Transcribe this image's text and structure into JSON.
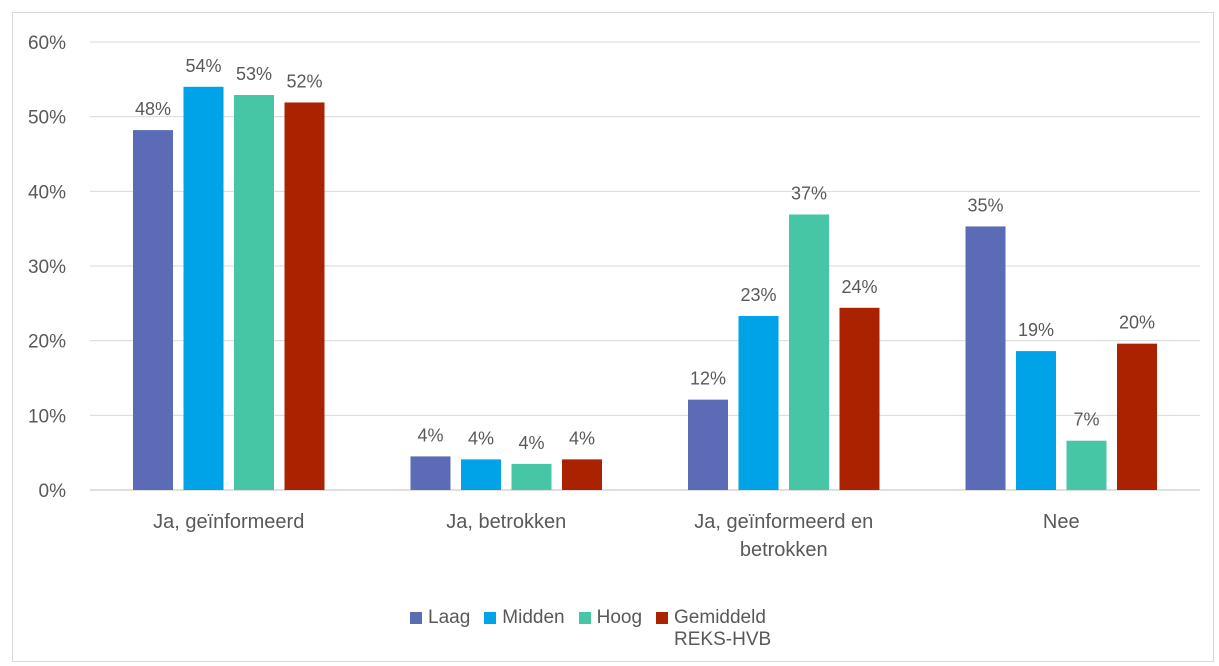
{
  "chart_data": {
    "type": "bar",
    "categories": [
      "Ja, geïnformeerd",
      "Ja, betrokken",
      "Ja, geïnformeerd en betrokken",
      "Nee"
    ],
    "series": [
      {
        "name": "Laag",
        "color": "#5B6BB6",
        "values": [
          48,
          4,
          12,
          35
        ],
        "labels": [
          "48%",
          "4%",
          "12%",
          "35%"
        ]
      },
      {
        "name": "Midden",
        "color": "#00A2E8",
        "values": [
          54,
          4,
          23,
          19
        ],
        "labels": [
          "54%",
          "4%",
          "23%",
          "19%"
        ]
      },
      {
        "name": "Hoog",
        "color": "#47C6A6",
        "values": [
          53,
          4,
          37,
          7
        ],
        "labels": [
          "53%",
          "4%",
          "37%",
          "7%"
        ]
      },
      {
        "name": "Gemiddeld REKS-HVB",
        "color": "#AA2200",
        "values": [
          52,
          4,
          24,
          20
        ],
        "labels": [
          "52%",
          "4%",
          "24%",
          "20%"
        ]
      }
    ],
    "bar_heights": [
      [
        48.2,
        4.5,
        12.1,
        35.3
      ],
      [
        54.0,
        4.1,
        23.3,
        18.6
      ],
      [
        52.9,
        3.5,
        36.9,
        6.6
      ],
      [
        51.9,
        4.1,
        24.4,
        19.6
      ]
    ],
    "y_ticks": [
      "0%",
      "10%",
      "20%",
      "30%",
      "40%",
      "50%",
      "60%"
    ],
    "ylim": [
      0,
      60
    ],
    "grid": true,
    "legend_position": "bottom",
    "title": "",
    "xlabel": "",
    "ylabel": ""
  }
}
